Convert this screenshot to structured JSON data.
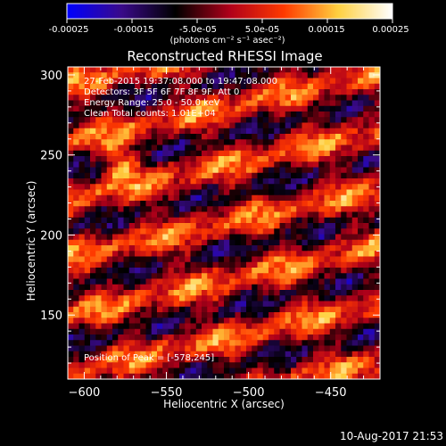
{
  "colorbar": {
    "tick_labels": [
      "-0.00025",
      "-0.00015",
      "-5.0e-05",
      "5.0e-05",
      "0.00015",
      "0.00025"
    ],
    "tick_values": [
      -0.00025,
      -0.00015,
      -5e-05,
      5e-05,
      0.00015,
      0.00025
    ],
    "range": [
      -0.00025,
      0.00025
    ],
    "units": "(photons cm⁻² s⁻¹ asec⁻²)",
    "colors": [
      "#0000ff",
      "#3a0a8a",
      "#000000",
      "#b0001a",
      "#ff3a00",
      "#ffd040",
      "#ffffff"
    ]
  },
  "chart_data": {
    "type": "heatmap",
    "title": "Reconstructed RHESSI Image",
    "xlabel": "Heliocentric X (arcsec)",
    "ylabel": "Heliocentric Y (arcsec)",
    "xlim": [
      -610,
      -420
    ],
    "ylim": [
      110,
      305
    ],
    "xticks": [
      -600,
      -550,
      -500,
      -450
    ],
    "yticks": [
      150,
      200,
      250,
      300
    ],
    "pattern": "diagonal-stripes",
    "peak": [
      -578,
      245
    ],
    "info_lines": [
      "27-Feb-2015 19:37:08.000 to 19:47:08.000",
      "Detectors: 3F 5F 6F 7F 8F 9F, Att 0",
      "Energy Range: 25.0 - 50.0 keV",
      "Clean    Total counts: 1.01E+04"
    ],
    "peak_label": "Position of Peak = [-578,245]"
  },
  "footer": {
    "timestamp": "10-Aug-2017 21:53"
  }
}
